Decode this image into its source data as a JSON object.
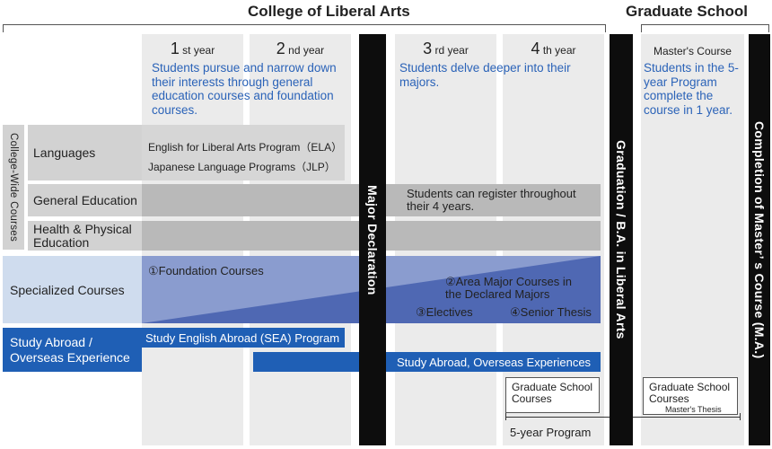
{
  "headers": {
    "college": "College of Liberal Arts",
    "graduate": "Graduate School"
  },
  "years": [
    {
      "num": "1",
      "suffix": "st year"
    },
    {
      "num": "2",
      "suffix": "nd year"
    },
    {
      "num": "3",
      "suffix": "rd year"
    },
    {
      "num": "4",
      "suffix": "th year"
    }
  ],
  "masters_course": "Master's Course",
  "notes": {
    "years12": "Students pursue and narrow down their interests through general education courses and foundation courses.",
    "years34": "Students delve deeper into their majors.",
    "masters": "Students in the 5-year Program complete the course in 1 year."
  },
  "left_labels": {
    "college_wide": "College-Wide Courses",
    "languages": "Languages",
    "general_education": "General Education",
    "health": "Health & Physical Education",
    "specialized": "Specialized Courses",
    "study_abroad": "Study Abroad / Overseas Experience"
  },
  "languages_programs": {
    "ela": "English for Liberal Arts Program（ELA）",
    "jlp": "Japanese Language Programs（JLP）"
  },
  "general_note": "Students can register throughout their 4 years.",
  "specialized": {
    "foundation": "①Foundation Courses",
    "area_major": "②Area Major Courses in the Declared Majors",
    "electives": "③Electives",
    "senior_thesis": "④Senior Thesis"
  },
  "study_abroad": {
    "sea": "Study English Abroad (SEA) Program",
    "overseas": "Study Abroad, Overseas Experiences"
  },
  "graduate_courses": "Graduate School Courses",
  "graduate_courses_right": "Graduate School Courses",
  "masters_thesis": "Master's Thesis",
  "five_year": "5-year Program",
  "vertical_bars": {
    "major_declaration": "Major Declaration",
    "graduation": "Graduation / B.A. in Liberal Arts",
    "completion": "Completion of Master’ s Course (M.A.)"
  },
  "colors": {
    "blue_text": "#2b63b8",
    "blue_box": "#1f5fb5",
    "specialized_fill": "#7b8cc4",
    "light_blue": "#cfdcee"
  }
}
